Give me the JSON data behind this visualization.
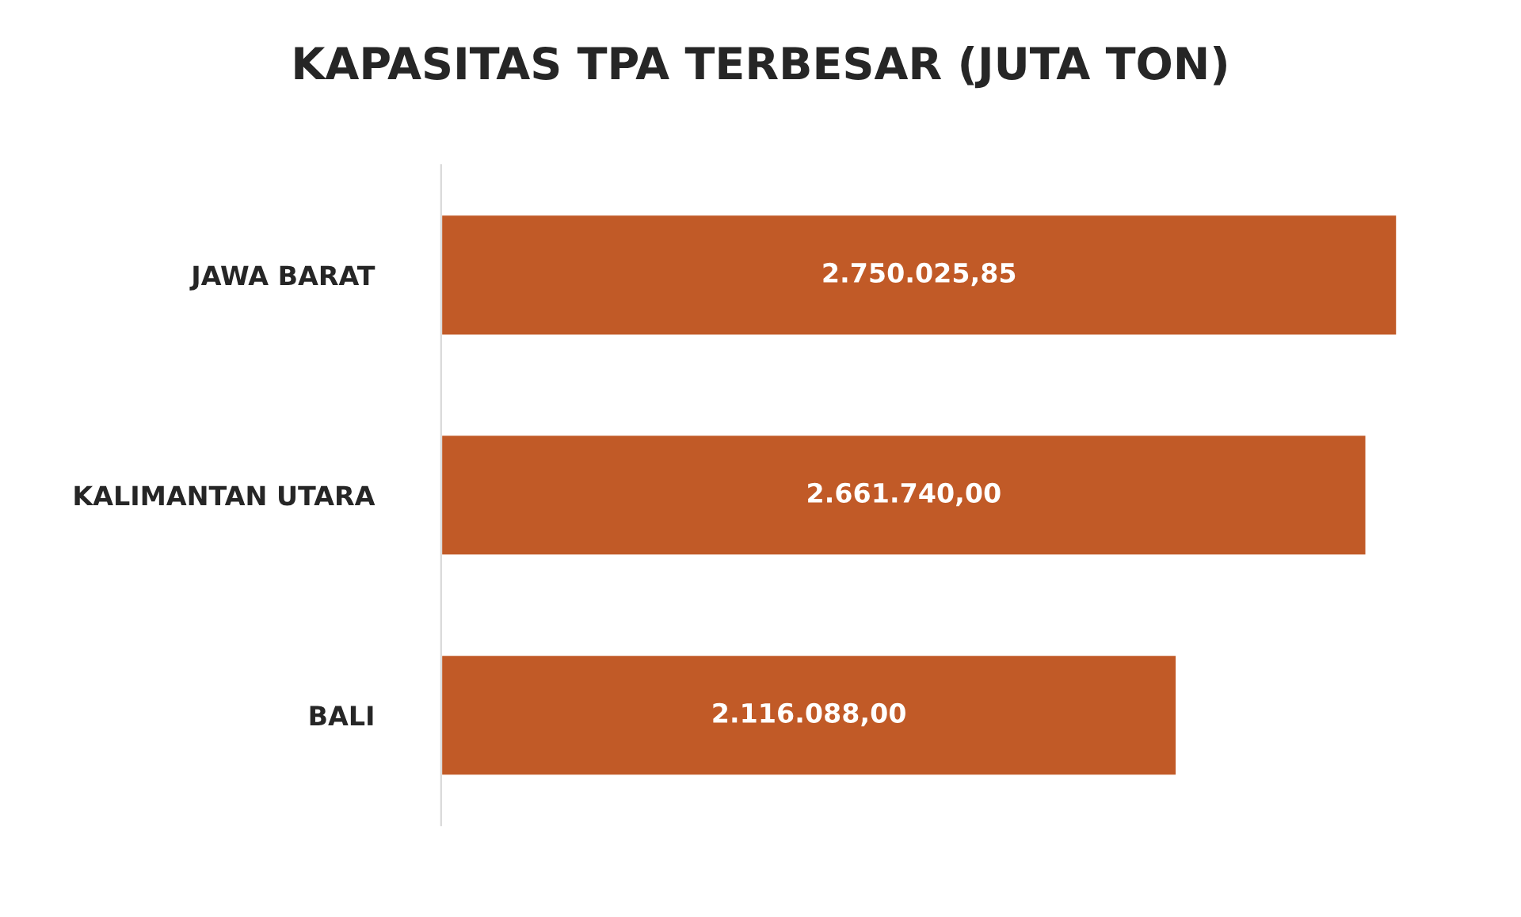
{
  "chart_data": {
    "type": "bar",
    "orientation": "horizontal",
    "title": "KAPASITAS TPA TERBESAR (JUTA TON)",
    "categories": [
      "JAWA BARAT",
      "KALIMANTAN UTARA",
      "BALI"
    ],
    "values": [
      2750025.85,
      2661740.0,
      2116088.0
    ],
    "value_labels": [
      "2.750.025,85",
      "2.661.740,00",
      "2.116.088,00"
    ],
    "color": "#c15a27",
    "tick_labels": "y",
    "grid": false,
    "legend": false
  }
}
